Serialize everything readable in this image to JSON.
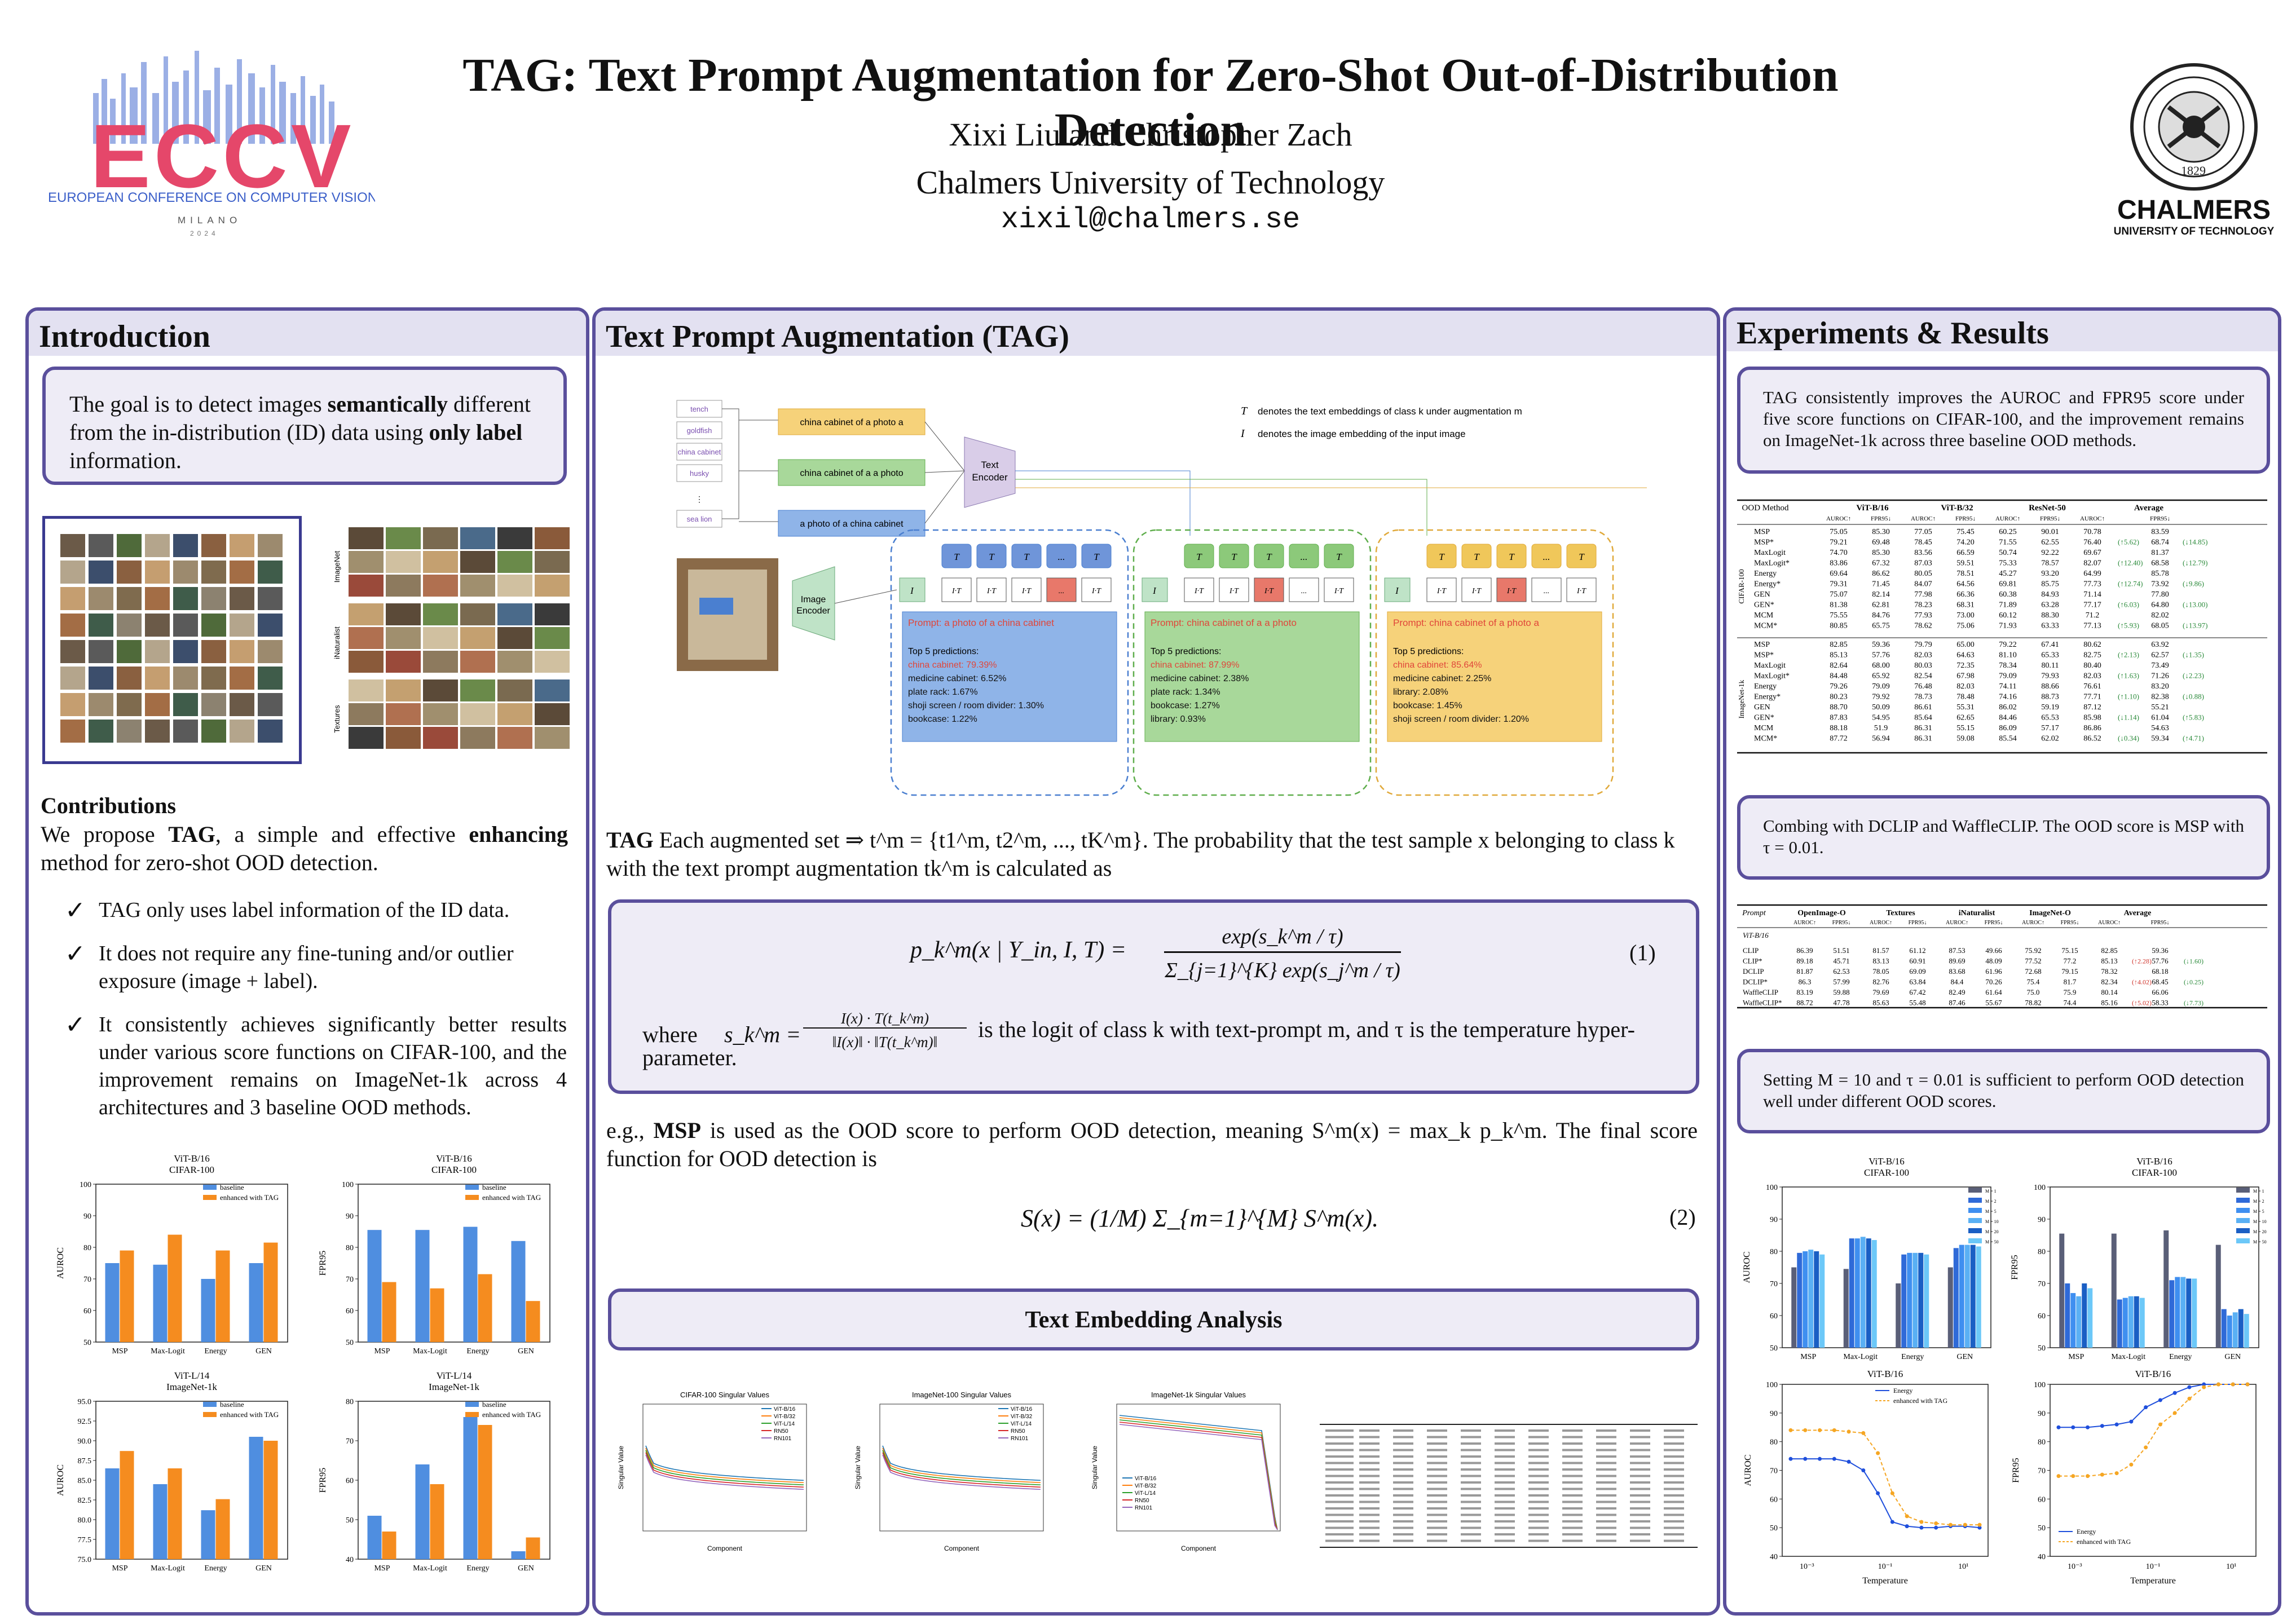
{
  "title": "TAG: Text Prompt Augmentation for Zero-Shot Out-of-Distribution Detection",
  "authors": "Xixi Liu and Christopher Zach",
  "affiliation": "Chalmers University of Technology",
  "email": "xixil@chalmers.se",
  "eccv": {
    "logo": "ECCV",
    "conference": "EUROPEAN CONFERENCE ON COMPUTER VISION",
    "place": "MILANO",
    "year": "2024"
  },
  "chalmers": {
    "name": "CHALMERS",
    "sub": "UNIVERSITY OF TECHNOLOGY",
    "seal_year": "1829"
  },
  "intro": {
    "heading": "Introduction",
    "goal": [
      "The goal is to detect images ",
      "semantically",
      " different from the in-distribution (ID) data using ",
      "only label",
      " information."
    ],
    "contrib_heading": "Contributions",
    "contrib_text": [
      "We propose ",
      "TAG",
      ", a simple and effective ",
      "enhancing",
      " method for zero-shot OOD detection."
    ],
    "bullets": [
      "TAG only uses label information of the ID data.",
      "It does not require any fine-tuning and/or outlier exposure (image + label).",
      "It consistently achieves significantly better results under various score functions on CIFAR-100, and the improvement remains on ImageNet-1k across 4 architectures and 3 baseline OOD methods."
    ],
    "ood_labels": [
      "ImageNet",
      "iNaturalist",
      "Textures"
    ]
  },
  "intro_charts": [
    {
      "title": "ViT-B/16",
      "subtitle": "CIFAR-100",
      "ylabel": "AUROC",
      "ylim": [
        50,
        100
      ],
      "ticks": [
        "50",
        "60",
        "70",
        "80",
        "90",
        "100"
      ],
      "categories": [
        "MSP",
        "Max-Logit",
        "Energy",
        "GEN"
      ],
      "series": [
        {
          "name": "baseline",
          "values": [
            75,
            74.5,
            70,
            75
          ]
        },
        {
          "name": "enhanced with TAG",
          "values": [
            79,
            84,
            79,
            81.5
          ]
        }
      ]
    },
    {
      "title": "ViT-B/16",
      "subtitle": "CIFAR-100",
      "ylabel": "FPR95",
      "ylim": [
        50,
        100
      ],
      "ticks": [
        "50",
        "60",
        "70",
        "80",
        "90",
        "100"
      ],
      "categories": [
        "MSP",
        "Max-Logit",
        "Energy",
        "GEN"
      ],
      "series": [
        {
          "name": "baseline",
          "values": [
            85.5,
            85.5,
            86.5,
            82
          ]
        },
        {
          "name": "enhanced with TAG",
          "values": [
            69,
            67,
            71.5,
            63
          ]
        }
      ]
    },
    {
      "title": "ViT-L/14",
      "subtitle": "ImageNet-1k",
      "ylabel": "AUROC",
      "ylim": [
        75,
        95
      ],
      "ticks": [
        "75.0",
        "77.5",
        "80.0",
        "82.5",
        "85.0",
        "87.5",
        "90.0",
        "92.5",
        "95.0"
      ],
      "categories": [
        "MSP",
        "Max-Logit",
        "Energy",
        "GEN"
      ],
      "series": [
        {
          "name": "baseline",
          "values": [
            86.5,
            84.5,
            81.2,
            90.5
          ]
        },
        {
          "name": "enhanced with TAG",
          "values": [
            88.7,
            86.5,
            82.6,
            90
          ]
        }
      ]
    },
    {
      "title": "ViT-L/14",
      "subtitle": "ImageNet-1k",
      "ylabel": "FPR95",
      "ylim": [
        40,
        80
      ],
      "ticks": [
        "40",
        "50",
        "60",
        "70",
        "80"
      ],
      "categories": [
        "MSP",
        "Max-Logit",
        "Energy",
        "GEN"
      ],
      "series": [
        {
          "name": "baseline",
          "values": [
            51,
            64,
            76,
            42
          ]
        },
        {
          "name": "enhanced with TAG",
          "values": [
            47,
            59,
            74,
            45.5
          ]
        }
      ]
    }
  ],
  "tag": {
    "heading": "Text Prompt Augmentation (TAG)",
    "classes": [
      "tench",
      "goldfish",
      "china cabinet",
      "husky",
      "sea lion"
    ],
    "prompts": [
      "china cabinet of a photo a",
      "china cabinet of a a photo",
      "a photo of a china cabinet"
    ],
    "text_encoder": "Text Encoder",
    "image_encoder": "Image Encoder",
    "legend_T": "denotes the text embeddings of class k under augmentation m",
    "legend_I": "denotes  the image embedding of the input image",
    "groups": [
      {
        "prompt": "Prompt: a photo of a china cabinet",
        "top": "Top 5 predictions:",
        "preds": [
          "china cabinet: 79.39%",
          "medicine cabinet: 6.52%",
          "plate rack: 1.67%",
          "shoji screen / room divider: 1.30%",
          "bookcase: 1.22%"
        ],
        "color": "#8fb4e8",
        "border": "#4a7fd0",
        "tcolor": "#6f95d9"
      },
      {
        "prompt": "Prompt: china cabinet of a a photo",
        "top": "Top 5 predictions:",
        "preds": [
          "china cabinet: 87.99%",
          "medicine cabinet: 2.38%",
          "plate rack: 1.34%",
          "bookcase: 1.27%",
          "library: 0.93%"
        ],
        "color": "#a8d89a",
        "border": "#5fae4c",
        "tcolor": "#8cc97a"
      },
      {
        "prompt": "Prompt: china cabinet of a photo a",
        "top": "Top 5 predictions:",
        "preds": [
          "china cabinet: 85.64%",
          "medicine cabinet: 2.25%",
          "library: 2.08%",
          "bookcase: 1.45%",
          "shoji screen / room divider: 1.20%"
        ],
        "color": "#f6d27a",
        "border": "#e0a93a",
        "tcolor": "#f0c75a"
      }
    ],
    "t_labels": [
      "T",
      "T",
      "T",
      "...",
      "T"
    ],
    "i_labels": [
      "I·T",
      "I·T",
      "I·T",
      "...",
      "I·T"
    ],
    "desc": "Each augmented set ⇒ t^m = {t1^m, t2^m, ..., tK^m}. The probability that the test sample x belonging to class k with the text prompt augmentation tk^m is calculated as",
    "desc_bold": "TAG",
    "eq1_lhs": "p_k^m(x | Y_in, I, T) =",
    "eq1_num": "exp(s_k^m / τ)",
    "eq1_den": "Σ_{j=1}^{K} exp(s_j^m / τ)",
    "eq1_tag": "(1)",
    "where_a": "where",
    "where_b": "s_k^m =",
    "where_frac_num": "I(x) · T(t_k^m)",
    "where_frac_den": "‖I(x)‖ · ‖T(t_k^m)‖",
    "where_c": "is the logit of class k with text-prompt m, and τ is the temperature hyper-parameter.",
    "msp_text_a": "e.g.,",
    "msp_bold": "MSP",
    "msp_text_b": "is used as the OOD score to perform OOD detection, meaning S^m(x) = max_k p_k^m. The final score function for OOD detection is",
    "eq2": "S(x) = (1/M) Σ_{m=1}^{M} S^m(x).",
    "eq2_tag": "(2)",
    "analysis": "Text Embedding Analysis"
  },
  "sv_charts": [
    {
      "title": "CIFAR-100 Singular Values",
      "xlabel": "Component",
      "ylabel": "Singular Value",
      "legend": [
        "ViT-B/16",
        "ViT-B/32",
        "ViT-L/14",
        "RN50",
        "RN101"
      ]
    },
    {
      "title": "ImageNet-100 Singular Values",
      "xlabel": "Component",
      "ylabel": "Singular Value",
      "legend": [
        "ViT-B/16",
        "ViT-B/32",
        "ViT-L/14",
        "RN50",
        "RN101"
      ]
    },
    {
      "title": "ImageNet-1k Singular Values",
      "xlabel": "Component",
      "ylabel": "Singular Value",
      "legend": [
        "ViT-B/16",
        "ViT-B/32",
        "ViT-L/14",
        "RN50",
        "RN101"
      ]
    }
  ],
  "results": {
    "heading": "Experiments & Results",
    "box1": "TAG consistently improves the AUROC and FPR95 score under five score functions on CIFAR-100, and the improvement remains on ImageNet-1k across three baseline OOD methods.",
    "box2": "Combing with DCLIP and WaffleCLIP. The OOD score is MSP with τ = 0.01.",
    "box3": "Setting M = 10 and τ = 0.01 is sufficient to perform OOD detection well under different OOD scores.",
    "table1_header": [
      "OOD Method",
      "ViT-B/16",
      "ViT-B/32",
      "ResNet-50",
      "Average"
    ],
    "table1_sub": [
      "",
      "AUROC↑",
      "FPR95↓",
      "AUROC↑",
      "FPR95↓",
      "AUROC↑",
      "FPR95↓",
      "AUROC↑",
      "FPR95↓"
    ],
    "table1_group1": "CIFAR-100",
    "table1_group2": "ImageNet-1k",
    "table1_rows1": [
      [
        "MSP",
        "75.05",
        "85.30",
        "77.05",
        "75.45",
        "60.25",
        "90.01",
        "70.78",
        "83.59"
      ],
      [
        "MSP*",
        "79.21",
        "69.48",
        "78.45",
        "74.20",
        "71.55",
        "62.55",
        "76.40",
        "68.74"
      ],
      [
        "MaxLogit",
        "74.70",
        "85.30",
        "83.56",
        "66.59",
        "50.74",
        "92.22",
        "69.67",
        "81.37"
      ],
      [
        "MaxLogit*",
        "83.86",
        "67.32",
        "87.03",
        "59.51",
        "75.33",
        "78.57",
        "82.07",
        "68.58"
      ],
      [
        "Energy",
        "69.64",
        "86.62",
        "80.05",
        "78.51",
        "45.27",
        "93.20",
        "64.99",
        "85.78"
      ],
      [
        "Energy*",
        "79.31",
        "71.45",
        "84.07",
        "64.56",
        "69.81",
        "85.75",
        "77.73",
        "73.92"
      ],
      [
        "GEN",
        "75.07",
        "82.14",
        "77.98",
        "66.36",
        "60.38",
        "84.93",
        "71.14",
        "77.80"
      ],
      [
        "GEN*",
        "81.38",
        "62.81",
        "78.23",
        "68.31",
        "71.89",
        "63.28",
        "77.17",
        "64.80"
      ],
      [
        "MCM",
        "75.55",
        "84.76",
        "77.93",
        "73.00",
        "60.12",
        "88.30",
        "71.2",
        "82.02"
      ],
      [
        "MCM*",
        "80.85",
        "65.75",
        "78.62",
        "75.06",
        "71.93",
        "63.33",
        "77.13",
        "68.05"
      ]
    ],
    "table1_rows2": [
      [
        "MSP",
        "82.85",
        "59.36",
        "79.79",
        "65.00",
        "79.22",
        "67.41",
        "80.62",
        "63.92"
      ],
      [
        "MSP*",
        "85.13",
        "57.76",
        "82.03",
        "64.63",
        "81.10",
        "65.33",
        "82.75",
        "62.57"
      ],
      [
        "MaxLogit",
        "82.64",
        "68.00",
        "80.03",
        "72.35",
        "78.34",
        "80.11",
        "80.40",
        "73.49"
      ],
      [
        "MaxLogit*",
        "84.48",
        "65.92",
        "82.54",
        "67.98",
        "79.09",
        "79.93",
        "82.03",
        "71.26"
      ],
      [
        "Energy",
        "79.26",
        "79.09",
        "76.48",
        "82.03",
        "74.11",
        "88.66",
        "76.61",
        "83.20"
      ],
      [
        "Energy*",
        "80.23",
        "79.92",
        "78.73",
        "78.48",
        "74.16",
        "88.73",
        "77.71",
        "82.38"
      ],
      [
        "GEN",
        "88.70",
        "50.09",
        "86.61",
        "55.31",
        "86.02",
        "59.19",
        "87.12",
        "55.21"
      ],
      [
        "GEN*",
        "87.83",
        "54.95",
        "85.64",
        "62.65",
        "84.46",
        "65.53",
        "85.98",
        "61.04"
      ],
      [
        "MCM",
        "88.18",
        "51.9",
        "86.31",
        "55.15",
        "86.09",
        "57.17",
        "86.86",
        "54.63"
      ],
      [
        "MCM*",
        "87.72",
        "56.94",
        "86.31",
        "59.08",
        "85.54",
        "62.02",
        "86.52",
        "59.34"
      ]
    ],
    "table1_delta_a1": [
      "",
      "(↑5.62)",
      "",
      "(↑12.40)",
      "",
      "(↑12.74)",
      "",
      "(↑6.03)",
      "",
      "(↑5.93)"
    ],
    "table1_delta_b1": [
      "",
      "(↓14.85)",
      "",
      "(↓12.79)",
      "",
      "(↓9.86)",
      "",
      "(↓13.00)",
      "",
      "(↓13.97)"
    ],
    "table1_delta_a2": [
      "",
      "(↑2.13)",
      "",
      "(↑1.63)",
      "",
      "(↑1.10)",
      "",
      "(↓1.14)",
      "",
      "(↓0.34)"
    ],
    "table1_delta_b2": [
      "",
      "(↓1.35)",
      "",
      "(↓2.23)",
      "",
      "(↓0.88)",
      "",
      "(↑5.83)",
      "",
      "(↑4.71)"
    ],
    "table2_header": [
      "Prompt",
      "OpenImage-O",
      "Textures",
      "iNaturalist",
      "ImageNet-O",
      "Average"
    ],
    "table2_sub": [
      "",
      "AUROC↑",
      "FPR95↓",
      "AUROC↑",
      "FPR95↓",
      "AUROC↑",
      "FPR95↓",
      "AUROC↑",
      "FPR95↓",
      "AUROC↑",
      "FPR95↓"
    ],
    "table2_group": "ViT-B/16",
    "table2_rows": [
      [
        "CLIP",
        "86.39",
        "51.51",
        "81.57",
        "61.12",
        "87.53",
        "49.66",
        "75.92",
        "75.15",
        "82.85",
        "59.36"
      ],
      [
        "CLIP*",
        "89.18",
        "45.71",
        "83.13",
        "60.91",
        "89.69",
        "48.09",
        "77.52",
        "77.2",
        "85.13",
        "57.76"
      ],
      [
        "DCLIP",
        "81.87",
        "62.53",
        "78.05",
        "69.09",
        "83.68",
        "61.96",
        "72.68",
        "79.15",
        "78.32",
        "68.18"
      ],
      [
        "DCLIP*",
        "86.3",
        "57.99",
        "82.76",
        "63.84",
        "84.4",
        "70.26",
        "75.4",
        "81.7",
        "82.34",
        "68.45"
      ],
      [
        "WaffleCLIP",
        "83.19",
        "59.88",
        "79.69",
        "67.42",
        "82.49",
        "61.64",
        "75.0",
        "75.9",
        "80.14",
        "66.06"
      ],
      [
        "WaffleCLIP*",
        "88.72",
        "47.78",
        "85.63",
        "55.48",
        "87.46",
        "55.67",
        "78.82",
        "74.4",
        "85.16",
        "58.33"
      ]
    ],
    "table2_deltas": [
      "(↑2.28)",
      "(↓1.60)",
      "(↑4.02)",
      "(↓0.25)",
      "(↑5.02)",
      "(↓7.73)"
    ],
    "bar_charts": [
      {
        "title": "ViT-B/16",
        "subtitle": "CIFAR-100",
        "ylabel": "AUROC",
        "ylim": [
          50,
          100
        ],
        "ticks": [
          "50",
          "60",
          "70",
          "80",
          "90",
          "100"
        ],
        "categories": [
          "MSP",
          "Max-Logit",
          "Energy",
          "GEN"
        ],
        "legend": [
          "M = 1",
          "M = 2",
          "M = 5",
          "M = 10",
          "M = 20",
          "M = 50"
        ],
        "series": [
          [
            75,
            79.5,
            80,
            80.5,
            80,
            79
          ],
          [
            74.5,
            84,
            84,
            84.5,
            84,
            83.5
          ],
          [
            70,
            79,
            79.5,
            79.5,
            79.5,
            79
          ],
          [
            75,
            81,
            82,
            82,
            82,
            81.5
          ]
        ]
      },
      {
        "title": "ViT-B/16",
        "subtitle": "CIFAR-100",
        "ylabel": "FPR95",
        "ylim": [
          50,
          100
        ],
        "ticks": [
          "50",
          "60",
          "70",
          "80",
          "90",
          "100"
        ],
        "categories": [
          "MSP",
          "Max-Logit",
          "Energy",
          "GEN"
        ],
        "legend": [
          "M = 1",
          "M = 2",
          "M = 5",
          "M = 10",
          "M = 20",
          "M = 50"
        ],
        "series": [
          [
            85.5,
            70,
            67,
            66,
            70,
            68.5
          ],
          [
            85.5,
            65,
            65.5,
            66,
            66,
            65.5
          ],
          [
            86.5,
            71,
            72,
            72,
            71.5,
            71.5
          ],
          [
            82,
            62,
            60,
            61,
            62,
            60.5
          ]
        ]
      }
    ],
    "line_charts": [
      {
        "title": "ViT-B/16",
        "ylabel": "AUROC",
        "xlabel": "Temperature",
        "ylim": [
          40,
          100
        ],
        "ticks": [
          "40",
          "50",
          "60",
          "70",
          "80",
          "90",
          "100"
        ],
        "xticks": [
          "10⁻³",
          "10⁻¹",
          "10¹"
        ],
        "legend": [
          "Energy",
          "enhanced with TAG"
        ],
        "energy": [
          74,
          74,
          74,
          74,
          73,
          70,
          62,
          52,
          50.5,
          50,
          50,
          50.5,
          50.5,
          50
        ],
        "tag": [
          84,
          84,
          84,
          84,
          83.5,
          83,
          76,
          62,
          54,
          52,
          51.5,
          51,
          51,
          51
        ]
      },
      {
        "title": "ViT-B/16",
        "ylabel": "FPR95",
        "xlabel": "Temperature",
        "ylim": [
          40,
          100
        ],
        "ticks": [
          "40",
          "50",
          "60",
          "70",
          "80",
          "90",
          "100"
        ],
        "xticks": [
          "10⁻³",
          "10⁻¹",
          "10¹"
        ],
        "legend": [
          "Energy",
          "enhanced with TAG"
        ],
        "energy": [
          85,
          85,
          85,
          85.5,
          86,
          87,
          92,
          94.5,
          97,
          99,
          100,
          100,
          100,
          100
        ],
        "tag": [
          68,
          68,
          68,
          68.5,
          69,
          72,
          78,
          86,
          90,
          95,
          99,
          100,
          100,
          100
        ]
      }
    ]
  }
}
